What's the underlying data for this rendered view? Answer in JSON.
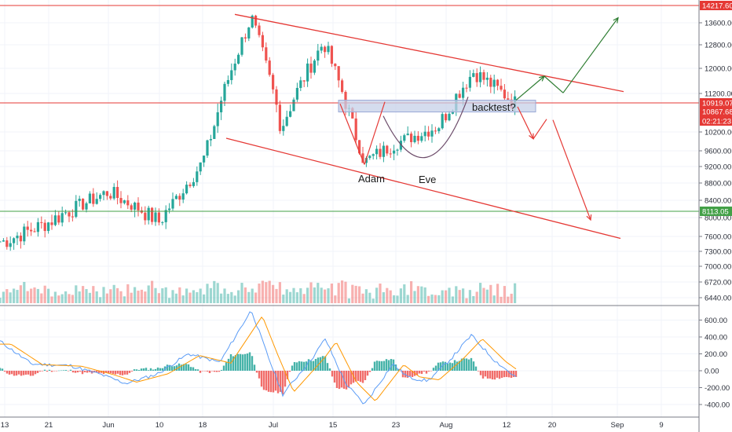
{
  "chart_data": [
    {
      "type": "candlestick",
      "panel": "price",
      "x_ticks": [
        "13",
        "21",
        "Jun",
        "10",
        "18",
        "Jul",
        "15",
        "23",
        "Aug",
        "12",
        "20",
        "Sep",
        "9"
      ],
      "y_ticks": [
        13600,
        12800,
        12000,
        11200,
        10200,
        9600,
        9200,
        8800,
        8400,
        8000,
        7600,
        7300,
        7000,
        6720,
        6440
      ],
      "price_labels": [
        {
          "value": "14217.60",
          "color": "#e53935"
        },
        {
          "value": "10919.07",
          "color": "#e53935"
        },
        {
          "value": "10867.68",
          "color": "#e53935"
        },
        {
          "value": "02:21:23",
          "color": "#e53935"
        },
        {
          "value": "8113.05",
          "color": "#43a047"
        }
      ],
      "key_points": [
        {
          "date": "May 13",
          "price": 7500
        },
        {
          "date": "May 21",
          "price": 7900
        },
        {
          "date": "Jun 1",
          "price": 8600
        },
        {
          "date": "Jun 10",
          "price": 7900
        },
        {
          "date": "Jun 18",
          "price": 9300
        },
        {
          "date": "Jun 26",
          "price": 13800
        },
        {
          "date": "Jul 2",
          "price": 10300
        },
        {
          "date": "Jul 10",
          "price": 12900
        },
        {
          "date": "Jul 17",
          "price": 9300
        },
        {
          "date": "Jul 24",
          "price": 9900
        },
        {
          "date": "Aug 1",
          "price": 10400
        },
        {
          "date": "Aug 6",
          "price": 11900
        },
        {
          "date": "Aug 14",
          "price": 10900
        }
      ],
      "annotations": [
        "Adam",
        "Eve",
        "backtest?"
      ],
      "horizontal_levels": [
        14217.6,
        10919.07,
        8113.05
      ],
      "colors": {
        "up": "#26a69a",
        "down": "#ef5350",
        "channel": "#e53935",
        "support": "#43a047",
        "target": "#2e7d32",
        "zone": "#c5d0e8"
      }
    },
    {
      "type": "bar",
      "panel": "macd",
      "y_ticks": [
        600,
        400,
        200,
        0,
        -200,
        -400
      ]
    }
  ]
}
